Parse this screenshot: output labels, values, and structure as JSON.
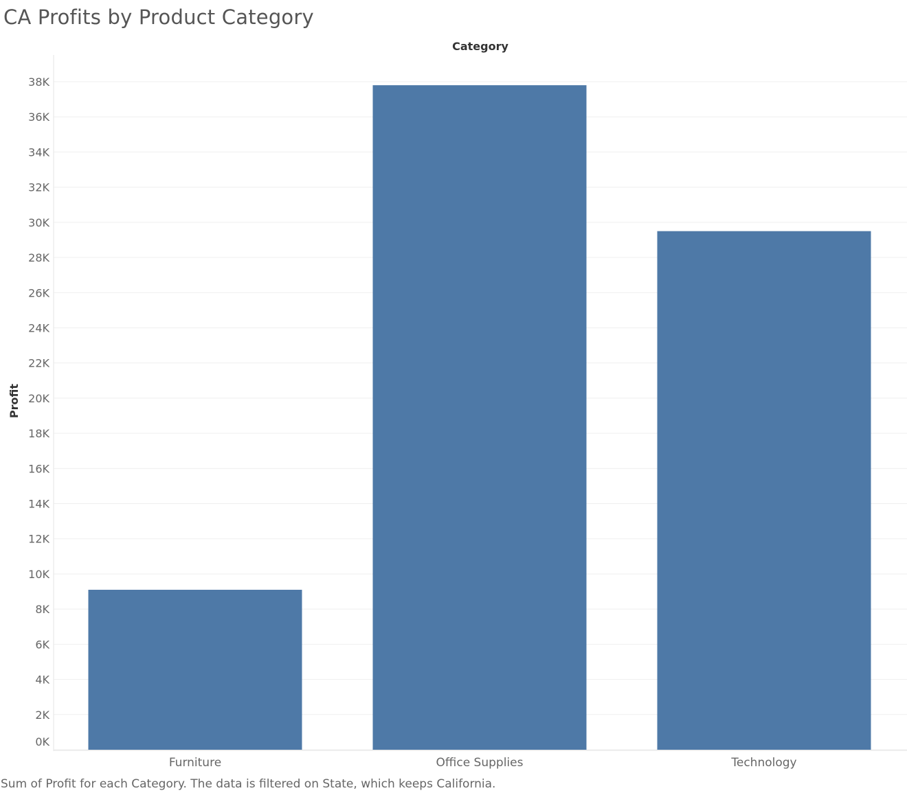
{
  "title": "CA Profits by Product Category",
  "caption": "Sum of Profit for each Category. The data is filtered on State, which keeps California.",
  "chart_data": {
    "type": "bar",
    "title": "CA Profits by Product Category",
    "xlabel": "Category",
    "ylabel": "Profit",
    "categories": [
      "Furniture",
      "Office Supplies",
      "Technology"
    ],
    "values": [
      9100,
      37800,
      29500
    ],
    "ylim": [
      0,
      38000
    ],
    "yticks": [
      0,
      2000,
      4000,
      6000,
      8000,
      10000,
      12000,
      14000,
      16000,
      18000,
      20000,
      22000,
      24000,
      26000,
      28000,
      30000,
      32000,
      34000,
      36000,
      38000
    ],
    "ytick_labels": [
      "0K",
      "2K",
      "4K",
      "6K",
      "8K",
      "10K",
      "12K",
      "14K",
      "16K",
      "18K",
      "20K",
      "22K",
      "24K",
      "26K",
      "28K",
      "30K",
      "32K",
      "34K",
      "36K",
      "38K"
    ],
    "grid": true,
    "legend": "none",
    "bar_color": "#4e79a7",
    "xlabel_position": "top"
  }
}
